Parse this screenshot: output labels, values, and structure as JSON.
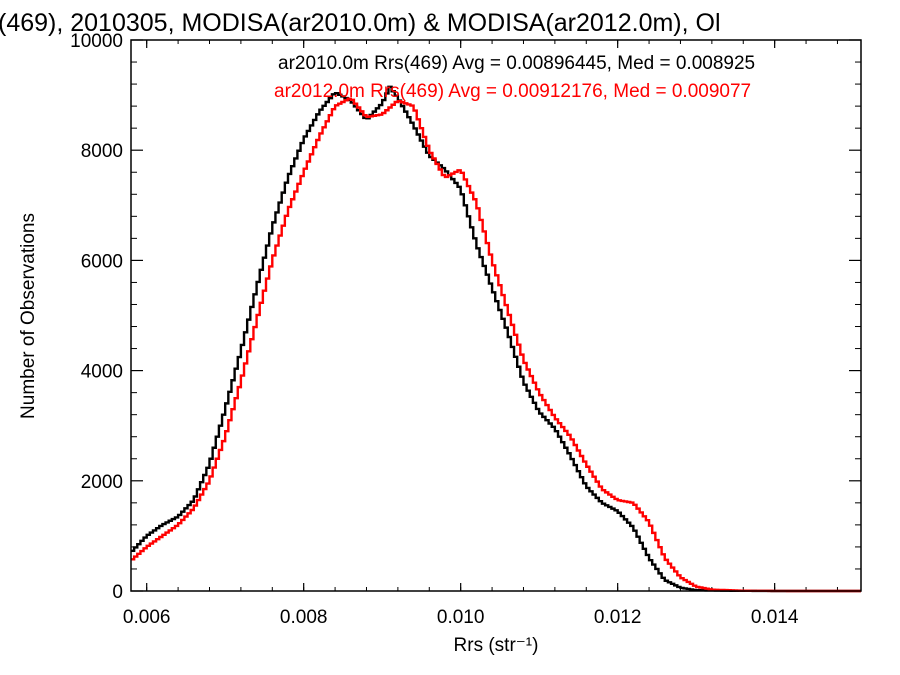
{
  "chart_data": {
    "type": "histogram",
    "title": "(469), 2010305, MODISA(ar2010.0m) & MODISA(ar2012.0m), Ol",
    "xlabel": "Rrs (str⁻¹)",
    "ylabel": "Number of Observations",
    "xlim": [
      0.0058,
      0.0151
    ],
    "ylim": [
      0,
      10000
    ],
    "x_ticks": [
      "0.006",
      "0.008",
      "0.010",
      "0.012",
      "0.014"
    ],
    "y_ticks": [
      "0",
      "2000",
      "4000",
      "6000",
      "8000",
      "10000"
    ],
    "grid": false,
    "legend_position": "top-right",
    "series": [
      {
        "name": "ar2010.0m Rrs(469) Avg = 0.00896445, Med = 0.008925",
        "color": "#000000",
        "points": [
          [
            0.0058,
            700
          ],
          [
            0.006,
            1000
          ],
          [
            0.0062,
            1200
          ],
          [
            0.0064,
            1350
          ],
          [
            0.0066,
            1650
          ],
          [
            0.0068,
            2300
          ],
          [
            0.007,
            3300
          ],
          [
            0.0072,
            4350
          ],
          [
            0.0074,
            5500
          ],
          [
            0.0076,
            6600
          ],
          [
            0.0078,
            7500
          ],
          [
            0.008,
            8200
          ],
          [
            0.0082,
            8700
          ],
          [
            0.0084,
            9050
          ],
          [
            0.0086,
            8900
          ],
          [
            0.0088,
            8550
          ],
          [
            0.009,
            8850
          ],
          [
            0.0091,
            9150
          ],
          [
            0.0092,
            8950
          ],
          [
            0.0094,
            8450
          ],
          [
            0.0096,
            7900
          ],
          [
            0.0098,
            7650
          ],
          [
            0.01,
            7300
          ],
          [
            0.0102,
            6300
          ],
          [
            0.0104,
            5500
          ],
          [
            0.0106,
            4700
          ],
          [
            0.0108,
            3800
          ],
          [
            0.011,
            3250
          ],
          [
            0.0112,
            2950
          ],
          [
            0.0114,
            2450
          ],
          [
            0.0116,
            1900
          ],
          [
            0.0118,
            1600
          ],
          [
            0.012,
            1450
          ],
          [
            0.0122,
            1150
          ],
          [
            0.0124,
            600
          ],
          [
            0.0126,
            200
          ],
          [
            0.0128,
            60
          ],
          [
            0.013,
            15
          ],
          [
            0.0134,
            5
          ],
          [
            0.014,
            0
          ],
          [
            0.0151,
            0
          ]
        ]
      },
      {
        "name": "ar2012.0m Rrs(469) Avg = 0.00912176, Med = 0.009077",
        "color": "#ff0000",
        "points": [
          [
            0.0058,
            550
          ],
          [
            0.006,
            800
          ],
          [
            0.0062,
            1000
          ],
          [
            0.0064,
            1200
          ],
          [
            0.0066,
            1500
          ],
          [
            0.0068,
            2000
          ],
          [
            0.007,
            2800
          ],
          [
            0.0072,
            3800
          ],
          [
            0.0074,
            4900
          ],
          [
            0.0076,
            6000
          ],
          [
            0.0078,
            6900
          ],
          [
            0.008,
            7600
          ],
          [
            0.0082,
            8250
          ],
          [
            0.0084,
            8800
          ],
          [
            0.0086,
            8950
          ],
          [
            0.0088,
            8600
          ],
          [
            0.009,
            8650
          ],
          [
            0.0092,
            8900
          ],
          [
            0.0094,
            8800
          ],
          [
            0.0096,
            8000
          ],
          [
            0.0098,
            7500
          ],
          [
            0.01,
            7650
          ],
          [
            0.0102,
            7050
          ],
          [
            0.0104,
            6000
          ],
          [
            0.0106,
            5100
          ],
          [
            0.0108,
            4200
          ],
          [
            0.011,
            3600
          ],
          [
            0.0112,
            3150
          ],
          [
            0.0114,
            2800
          ],
          [
            0.0116,
            2300
          ],
          [
            0.0118,
            1850
          ],
          [
            0.012,
            1650
          ],
          [
            0.0122,
            1600
          ],
          [
            0.0124,
            1250
          ],
          [
            0.0126,
            600
          ],
          [
            0.0128,
            250
          ],
          [
            0.013,
            80
          ],
          [
            0.0132,
            25
          ],
          [
            0.0136,
            5
          ],
          [
            0.0142,
            0
          ],
          [
            0.0151,
            0
          ]
        ]
      }
    ]
  }
}
